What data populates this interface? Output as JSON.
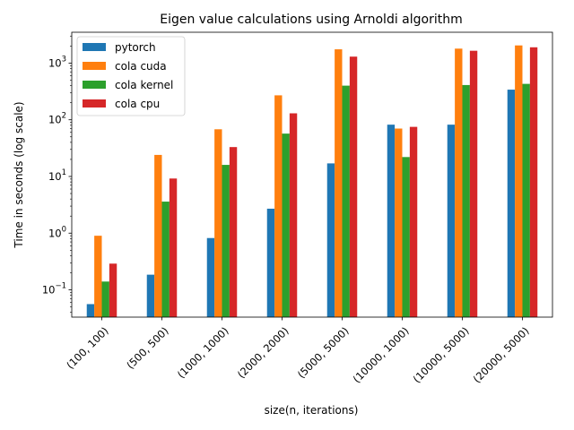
{
  "chart_data": {
    "type": "bar",
    "title": "Eigen value calculations using Arnoldi algorithm",
    "xlabel": "size(n, iterations)",
    "ylabel": "Time in seconds (log scale)",
    "yscale": "log",
    "ylim": [
      0.033,
      3500
    ],
    "y_ticks": [
      {
        "value": 0.1,
        "base": "10",
        "exp": "−1"
      },
      {
        "value": 1,
        "base": "10",
        "exp": "0"
      },
      {
        "value": 10,
        "base": "10",
        "exp": "1"
      },
      {
        "value": 100,
        "base": "10",
        "exp": "2"
      },
      {
        "value": 1000,
        "base": "10",
        "exp": "3"
      }
    ],
    "legend_position": "top-left",
    "categories": [
      "(100, 100)",
      "(500, 500)",
      "(1000, 1000)",
      "(2000, 2000)",
      "(5000, 5000)",
      "(10000, 1000)",
      "(10000, 5000)",
      "(20000, 5000)"
    ],
    "series": [
      {
        "name": "pytorch",
        "color": "#1f77b4",
        "values": [
          0.056,
          0.185,
          0.82,
          2.7,
          17,
          82,
          82,
          340
        ]
      },
      {
        "name": "cola cuda",
        "color": "#ff7f0e",
        "values": [
          0.9,
          24,
          68,
          270,
          1750,
          70,
          1800,
          2050
        ]
      },
      {
        "name": "cola kernel",
        "color": "#2ca02c",
        "values": [
          0.14,
          3.6,
          16,
          57,
          400,
          22,
          410,
          430
        ]
      },
      {
        "name": "cola cpu",
        "color": "#d62728",
        "values": [
          0.29,
          9.2,
          33,
          130,
          1300,
          75,
          1650,
          1900
        ]
      }
    ]
  }
}
